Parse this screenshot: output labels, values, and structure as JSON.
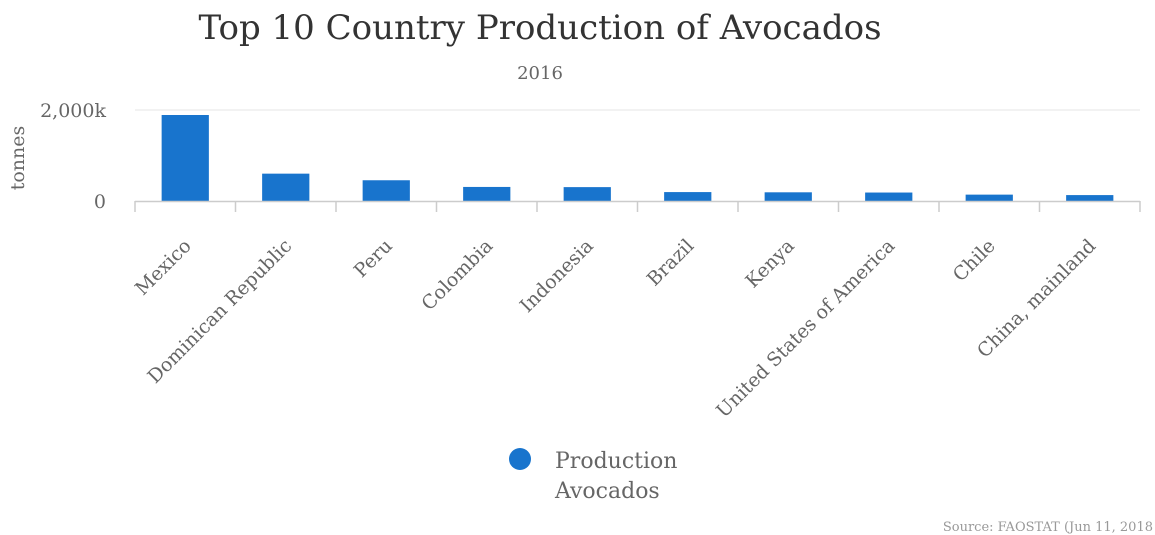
{
  "chart_data": {
    "type": "bar",
    "title": "Top 10 Country Production of Avocados",
    "subtitle": "2016",
    "ylabel": "tonnes",
    "xlabel": "",
    "ylim": [
      0,
      2000000
    ],
    "yticks": [
      0,
      2000000
    ],
    "ytick_labels": [
      "0",
      "2,000k"
    ],
    "grid": true,
    "categories": [
      "Mexico",
      "Dominican Republic",
      "Peru",
      "Colombia",
      "Indonesia",
      "Brazil",
      "Kenya",
      "United States of America",
      "Chile",
      "China, mainland"
    ],
    "series": [
      {
        "name": "Production Avocados",
        "legend_lines": [
          "Production",
          "Avocados"
        ],
        "color": "#1874cd",
        "values": [
          1890000,
          601000,
          456000,
          309000,
          305000,
          196000,
          191000,
          186000,
          140000,
          130000
        ]
      }
    ],
    "legend_position": "bottom",
    "source": "Source: FAOSTAT (Jun 11, 2018"
  }
}
